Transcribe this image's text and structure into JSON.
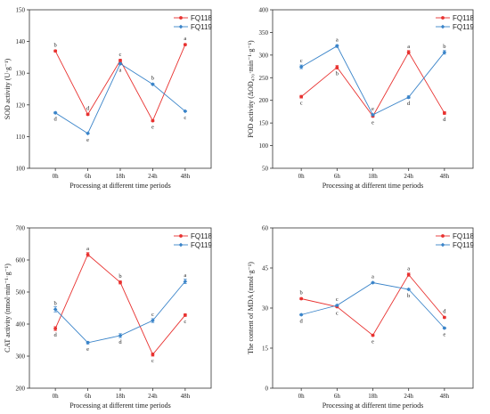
{
  "colors": {
    "FQ118": "#e8312f",
    "FQ119": "#3a84c9",
    "axis": "#333333"
  },
  "chart_data": [
    {
      "type": "line",
      "categories": [
        "0h",
        "6h",
        "18h",
        "24h",
        "48h"
      ],
      "series": [
        {
          "name": "FQ118",
          "values": [
            137,
            117,
            134,
            115,
            139
          ],
          "errors": [
            0.3,
            0.3,
            0.4,
            0.3,
            0.3
          ],
          "labels": [
            "b",
            "d",
            "c",
            "e",
            "a"
          ]
        },
        {
          "name": "FQ119",
          "values": [
            117.5,
            111,
            133,
            126.5,
            118
          ],
          "errors": [
            0.3,
            0.2,
            0.3,
            0.3,
            0.2
          ],
          "labels": [
            "d",
            "e",
            "a",
            "b",
            "c"
          ]
        }
      ],
      "xlabel": "Processing at different time periods",
      "ylabel": "SOD activity  (U·g⁻¹)",
      "ylim": [
        100,
        150
      ],
      "yticks": [
        100,
        110,
        120,
        130,
        140,
        150
      ],
      "legend": "top-right",
      "grid": false
    },
    {
      "type": "line",
      "categories": [
        "0h",
        "6h",
        "18h",
        "24h",
        "48h"
      ],
      "series": [
        {
          "name": "FQ118",
          "values": [
            208,
            273,
            165,
            306,
            172
          ],
          "errors": [
            3,
            4,
            2,
            4,
            3
          ],
          "labels": [
            "c",
            "b",
            "e",
            "a",
            "d"
          ]
        },
        {
          "name": "FQ119",
          "values": [
            274,
            320,
            168,
            207,
            306
          ],
          "errors": [
            4,
            3,
            2,
            3,
            4
          ],
          "labels": [
            "c",
            "a",
            "e",
            "d",
            "b"
          ]
        }
      ],
      "xlabel": "Processing at different time periods",
      "ylabel": "POD activity (ΔOD₄₇₀·min⁻¹·g⁻¹)",
      "ylim": [
        50,
        400
      ],
      "yticks": [
        50,
        100,
        150,
        200,
        250,
        300,
        350,
        400
      ],
      "legend": "top-right",
      "grid": false
    },
    {
      "type": "line",
      "categories": [
        "0h",
        "6h",
        "18h",
        "24h",
        "48h"
      ],
      "series": [
        {
          "name": "FQ118",
          "values": [
            386,
            617,
            530,
            305,
            428
          ],
          "errors": [
            6,
            6,
            5,
            5,
            4
          ],
          "labels": [
            "d",
            "a",
            "b",
            "c",
            "c"
          ]
        },
        {
          "name": "FQ119",
          "values": [
            446,
            342,
            364,
            411,
            533
          ],
          "errors": [
            8,
            4,
            6,
            6,
            7
          ],
          "labels": [
            "b",
            "e",
            "d",
            "c",
            "a"
          ]
        }
      ],
      "xlabel": "Processing at different time periods",
      "ylabel": "CAT activity  (nmol·min⁻¹·g⁻¹)",
      "ylim": [
        200,
        700
      ],
      "yticks": [
        200,
        300,
        400,
        500,
        600,
        700
      ],
      "legend": "top-right",
      "grid": false
    },
    {
      "type": "line",
      "categories": [
        "0h",
        "6h",
        "18h",
        "24h",
        "48h"
      ],
      "series": [
        {
          "name": "FQ118",
          "values": [
            33.5,
            30.5,
            19.8,
            42.5,
            26.5
          ],
          "errors": [
            0.3,
            0.3,
            0.3,
            0.6,
            0.3
          ],
          "labels": [
            "b",
            "c",
            "e",
            "a",
            "d"
          ]
        },
        {
          "name": "FQ119",
          "values": [
            27.5,
            31,
            39.5,
            37,
            22.5
          ],
          "errors": [
            0.3,
            0.3,
            0.3,
            0.3,
            0.3
          ],
          "labels": [
            "d",
            "c",
            "a",
            "b",
            "e"
          ]
        }
      ],
      "xlabel": "Processing at different time periods",
      "ylabel": "The content of MDA (nmol·g⁻¹)",
      "ylim": [
        0,
        60
      ],
      "yticks": [
        0,
        15,
        30,
        45,
        60
      ],
      "legend": "top-right",
      "grid": false
    }
  ]
}
